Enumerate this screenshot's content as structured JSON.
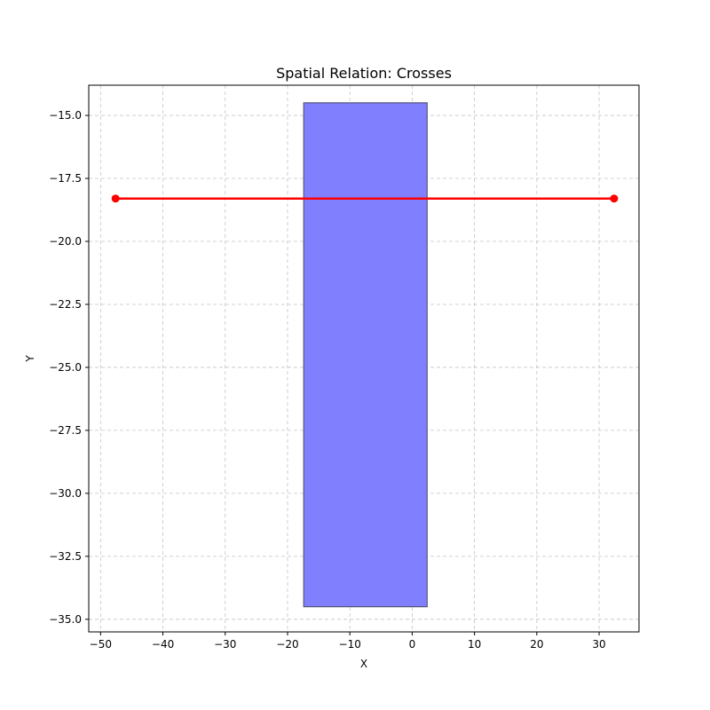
{
  "chart_data": {
    "type": "scatter",
    "title": "Spatial Relation: Crosses",
    "xlabel": "X",
    "ylabel": "Y",
    "xlim": [
      -51.9,
      36.4
    ],
    "ylim": [
      -35.5,
      -13.8
    ],
    "xticks": [
      -50,
      -40,
      -30,
      -20,
      -10,
      0,
      10,
      20,
      30
    ],
    "yticks": [
      -15.0,
      -17.5,
      -20.0,
      -22.5,
      -25.0,
      -27.5,
      -30.0,
      -32.5,
      -35.0
    ],
    "xtick_labels": [
      "−50",
      "−40",
      "−30",
      "−20",
      "−10",
      "0",
      "10",
      "20",
      "30"
    ],
    "ytick_labels": [
      "−15.0",
      "−17.5",
      "−20.0",
      "−22.5",
      "−25.0",
      "−27.5",
      "−30.0",
      "−32.5",
      "−35.0"
    ],
    "grid": true,
    "polygon": {
      "x_min": -17.4,
      "x_max": 2.4,
      "y_min": -34.5,
      "y_max": -14.5,
      "fill_color": "#8080ff",
      "edge_color": "#555577"
    },
    "line": {
      "points": [
        {
          "x": -47.6,
          "y": -18.3
        },
        {
          "x": 32.4,
          "y": -18.3
        }
      ],
      "color": "#ff0000"
    }
  }
}
